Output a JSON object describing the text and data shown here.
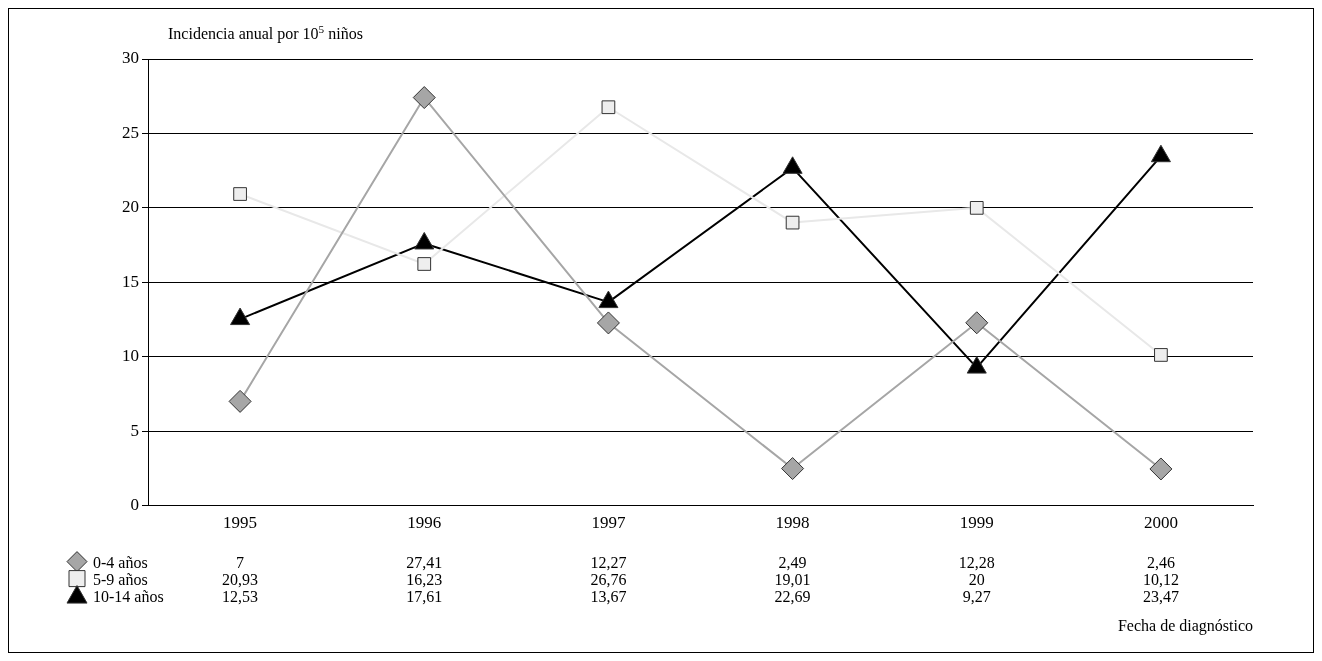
{
  "chart_data": {
    "type": "line",
    "ylabel": "Incidencia anual por 10$^{5}$ niños",
    "annotations": [
      "Fecha de diagnóstico"
    ],
    "categories": [
      "1995",
      "1996",
      "1997",
      "1998",
      "1999",
      "2000"
    ],
    "ylim": [
      0,
      30
    ],
    "yticks": [
      0,
      5,
      10,
      15,
      20,
      25,
      30
    ],
    "grid": "y",
    "legend": "bottom",
    "series": [
      {
        "name": "0-4 años",
        "color": "#a6a6a6",
        "marker": "diamond",
        "values": [
          7,
          27.41,
          12.27,
          2.49,
          12.28,
          2.46
        ],
        "value_labels": [
          "7",
          "27,41",
          "12,27",
          "2,49",
          "12,28",
          "2,46"
        ]
      },
      {
        "name": "5-9 años",
        "color": "#e8e8e8",
        "marker": "square",
        "values": [
          20.93,
          16.23,
          26.76,
          19.01,
          20,
          10.12
        ],
        "value_labels": [
          "20,93",
          "16,23",
          "26,76",
          "19,01",
          "20",
          "10,12"
        ]
      },
      {
        "name": "10-14 años",
        "color": "#000000",
        "marker": "triangle",
        "values": [
          12.53,
          17.61,
          13.67,
          22.69,
          9.27,
          23.47
        ],
        "value_labels": [
          "12,53",
          "17,61",
          "13,67",
          "22,69",
          "9,27",
          "23,47"
        ]
      }
    ]
  }
}
